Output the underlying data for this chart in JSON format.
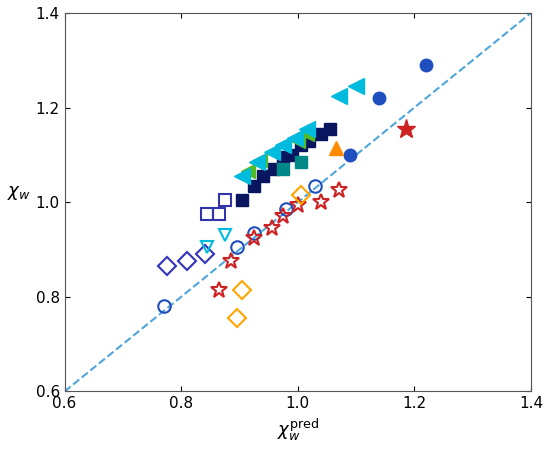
{
  "xlabel": "$\\chi_w^{\\mathrm{pred}}$",
  "ylabel": "$\\chi_w$",
  "xlim": [
    0.6,
    1.4
  ],
  "ylim": [
    0.6,
    1.4
  ],
  "xticks": [
    0.6,
    0.8,
    1.0,
    1.2,
    1.4
  ],
  "yticks": [
    0.6,
    0.8,
    1.0,
    1.2,
    1.4
  ],
  "dashed_color": "#4EA6DC",
  "series": [
    {
      "label": "blue_circle_filled",
      "color": "#1F4EBF",
      "marker": "o",
      "filled": true,
      "markersize": 9,
      "points": [
        [
          1.09,
          1.1
        ],
        [
          1.14,
          1.22
        ],
        [
          1.22,
          1.29
        ]
      ]
    },
    {
      "label": "blue_circle_open",
      "color": "#1F4EBF",
      "marker": "o",
      "filled": false,
      "markersize": 9,
      "points": [
        [
          0.77,
          0.78
        ],
        [
          0.895,
          0.905
        ],
        [
          0.925,
          0.935
        ],
        [
          0.98,
          0.985
        ],
        [
          1.03,
          1.035
        ]
      ]
    },
    {
      "label": "blue_square_open",
      "color": "#3333AA",
      "marker": "s",
      "filled": false,
      "markersize": 9,
      "points": [
        [
          0.845,
          0.975
        ],
        [
          0.865,
          0.975
        ],
        [
          0.875,
          1.005
        ]
      ]
    },
    {
      "label": "dark_navy_square_filled",
      "color": "#0A1560",
      "marker": "s",
      "filled": true,
      "markersize": 9,
      "points": [
        [
          0.905,
          1.005
        ],
        [
          0.925,
          1.035
        ],
        [
          0.94,
          1.055
        ],
        [
          0.96,
          1.07
        ],
        [
          0.975,
          1.095
        ],
        [
          0.99,
          1.1
        ],
        [
          1.005,
          1.12
        ],
        [
          1.02,
          1.13
        ],
        [
          1.04,
          1.145
        ],
        [
          1.055,
          1.155
        ]
      ]
    },
    {
      "label": "blue_diamond_open",
      "color": "#3333BB",
      "marker": "D",
      "filled": false,
      "markersize": 9,
      "points": [
        [
          0.775,
          0.865
        ],
        [
          0.81,
          0.875
        ],
        [
          0.84,
          0.89
        ]
      ]
    },
    {
      "label": "red_star_open",
      "color": "#CC2222",
      "marker": "*",
      "filled": false,
      "markersize": 12,
      "points": [
        [
          0.865,
          0.815
        ],
        [
          0.885,
          0.875
        ],
        [
          0.925,
          0.925
        ],
        [
          0.955,
          0.945
        ],
        [
          0.975,
          0.97
        ],
        [
          1.0,
          0.995
        ],
        [
          1.04,
          1.0
        ],
        [
          1.07,
          1.025
        ]
      ]
    },
    {
      "label": "red_star_filled",
      "color": "#CC2222",
      "marker": "*",
      "filled": true,
      "markersize": 14,
      "points": [
        [
          1.185,
          1.155
        ]
      ]
    },
    {
      "label": "orange_diamond_open",
      "color": "#FFA500",
      "marker": "D",
      "filled": false,
      "markersize": 9,
      "points": [
        [
          0.895,
          0.755
        ],
        [
          0.905,
          0.815
        ],
        [
          1.005,
          1.015
        ]
      ]
    },
    {
      "label": "orange_triangle_up_filled",
      "color": "#FF8C00",
      "marker": "^",
      "filled": true,
      "markersize": 10,
      "points": [
        [
          1.065,
          1.115
        ]
      ]
    },
    {
      "label": "green_triangle_left_filled",
      "color": "#55BB22",
      "marker": "<",
      "filled": true,
      "markersize": 10,
      "points": [
        [
          0.915,
          1.065
        ],
        [
          0.935,
          1.09
        ],
        [
          0.955,
          1.105
        ],
        [
          0.975,
          1.12
        ],
        [
          1.0,
          1.13
        ],
        [
          1.015,
          1.145
        ]
      ]
    },
    {
      "label": "cyan_triangle_left_filled",
      "color": "#00BBDD",
      "marker": "<",
      "filled": true,
      "markersize": 12,
      "points": [
        [
          0.905,
          1.055
        ],
        [
          0.93,
          1.085
        ],
        [
          0.955,
          1.105
        ],
        [
          0.975,
          1.12
        ],
        [
          0.995,
          1.135
        ],
        [
          1.015,
          1.155
        ],
        [
          1.07,
          1.225
        ],
        [
          1.1,
          1.245
        ]
      ]
    },
    {
      "label": "cyan_open_triangle_down",
      "color": "#00BBDD",
      "marker": "v",
      "filled": false,
      "markersize": 9,
      "points": [
        [
          0.845,
          0.905
        ],
        [
          0.875,
          0.93
        ]
      ]
    },
    {
      "label": "teal_square_filled",
      "color": "#008888",
      "marker": "s",
      "filled": true,
      "markersize": 9,
      "points": [
        [
          0.975,
          1.07
        ],
        [
          1.005,
          1.085
        ]
      ]
    }
  ]
}
